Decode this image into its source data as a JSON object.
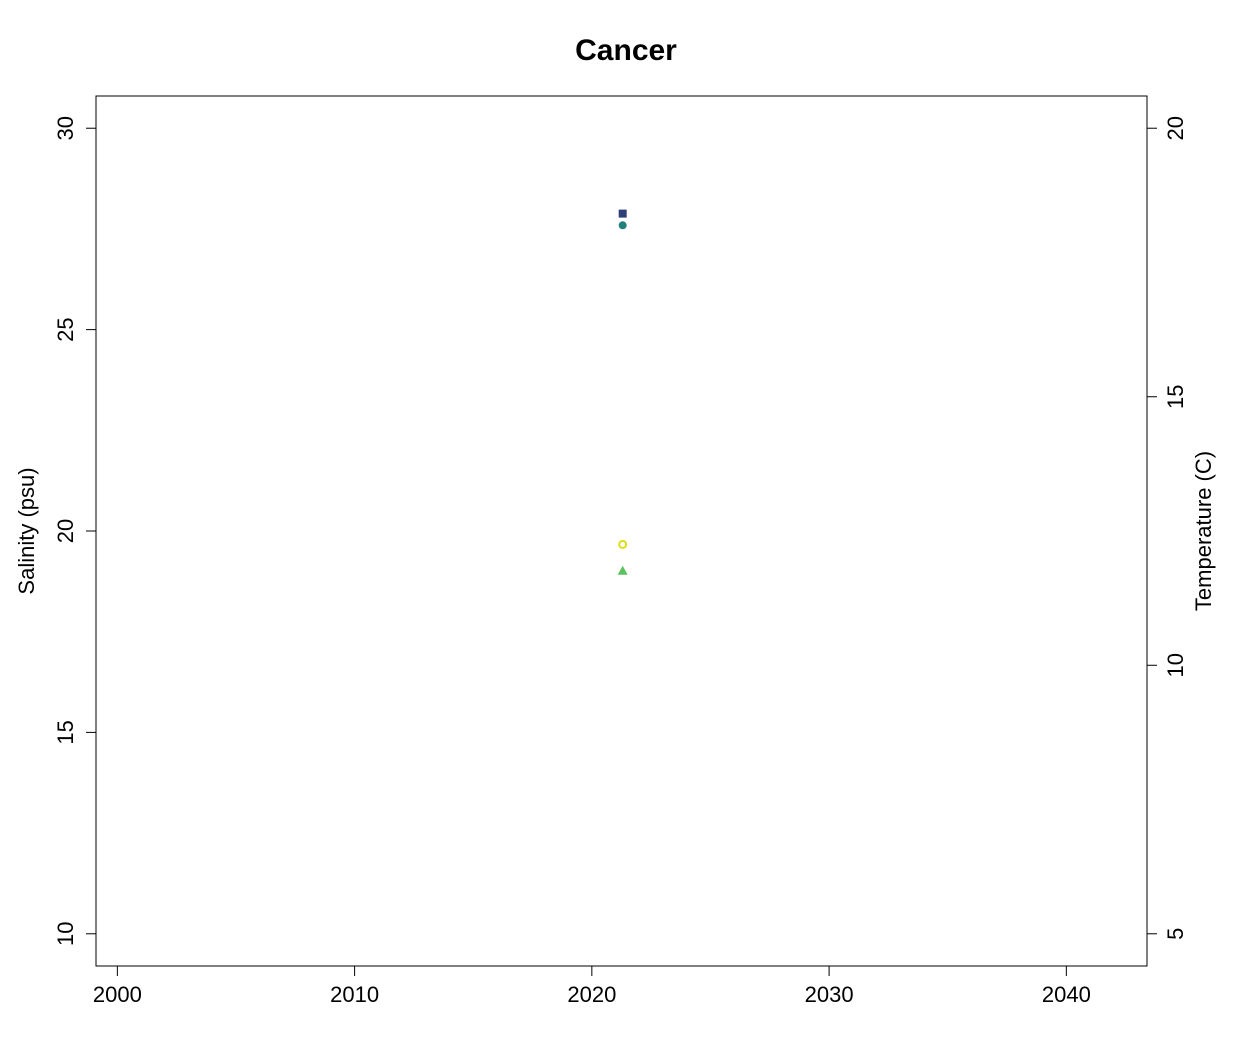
{
  "chart_data": {
    "type": "scatter",
    "title": "Cancer",
    "xlabel": "",
    "ylabel": "Salinity (psu)",
    "y2label": "Temperature (C)",
    "xlim": [
      1999.1,
      2043.4
    ],
    "ylim": [
      9.2,
      30.8
    ],
    "y2lim": [
      4.4,
      20.6
    ],
    "xticks": [
      2000,
      2010,
      2020,
      2030,
      2040
    ],
    "yticks": [
      10,
      15,
      20,
      25,
      30
    ],
    "y2ticks": [
      5,
      10,
      15,
      20
    ],
    "grid": false,
    "legend": "none",
    "series": [
      {
        "axis": "left",
        "marker": "square",
        "color": "#2e3f7a",
        "x": [
          2021.3
        ],
        "y": [
          27.88
        ]
      },
      {
        "axis": "left",
        "marker": "filled-circle",
        "color": "#21807b",
        "x": [
          2021.3
        ],
        "y": [
          27.59
        ]
      },
      {
        "axis": "right",
        "marker": "open-circle",
        "color": "#dede16",
        "x": [
          2021.3
        ],
        "y": [
          12.25
        ]
      },
      {
        "axis": "right",
        "marker": "triangle",
        "color": "#5cc15f",
        "x": [
          2021.3
        ],
        "y": [
          11.76
        ]
      }
    ]
  }
}
